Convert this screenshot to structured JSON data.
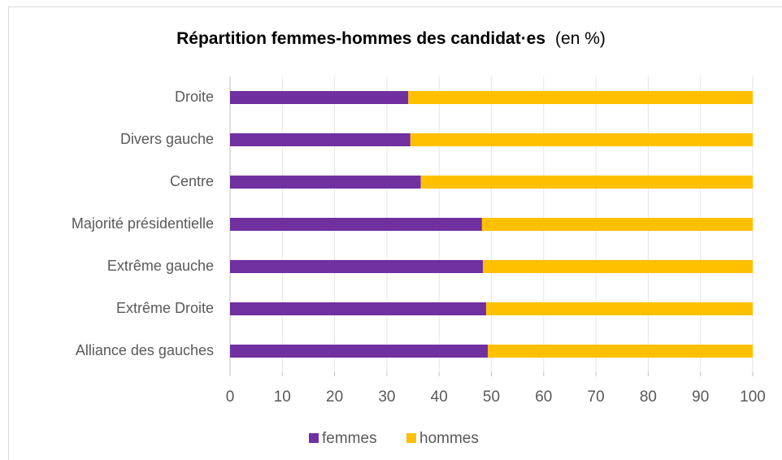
{
  "chart_data": {
    "type": "stacked_barh",
    "title": "Répartition femmes-hommes des candidat·es",
    "subtitle": "(en %)",
    "categories": [
      "Droite",
      "Divers gauche",
      "Centre",
      "Majorité présidentielle",
      "Extrême gauche",
      "Extrême Droite",
      "Alliance des gauches"
    ],
    "series": [
      {
        "name": "femmes",
        "color": "#7030a0",
        "values": [
          34.1,
          34.5,
          36.5,
          48.2,
          48.4,
          49.0,
          49.3
        ]
      },
      {
        "name": "hommes",
        "color": "#ffc000",
        "values": [
          65.9,
          65.5,
          63.5,
          51.8,
          51.6,
          51.0,
          50.7
        ]
      }
    ],
    "xlim": [
      0,
      100
    ],
    "xticks": [
      0,
      10,
      20,
      30,
      40,
      50,
      60,
      70,
      80,
      90,
      100
    ],
    "grid": true,
    "legend": "bottom"
  }
}
